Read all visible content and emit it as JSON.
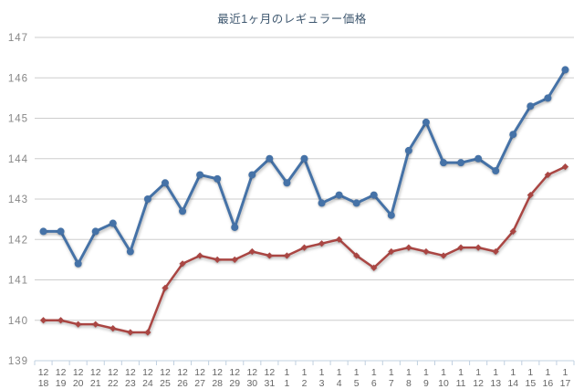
{
  "chart_data": {
    "type": "line",
    "title": "最近1ヶ月のレギュラー価格",
    "xlabel": "",
    "ylabel": "",
    "ylim": [
      139,
      147
    ],
    "y_ticks": [
      139,
      140,
      141,
      142,
      143,
      144,
      145,
      146,
      147
    ],
    "grid": true,
    "legend": "none",
    "categories": [
      "12/18",
      "12/19",
      "12/20",
      "12/21",
      "12/22",
      "12/23",
      "12/24",
      "12/25",
      "12/26",
      "12/27",
      "12/28",
      "12/29",
      "12/30",
      "12/31",
      "1/1",
      "1/2",
      "1/3",
      "1/4",
      "1/5",
      "1/6",
      "1/7",
      "1/8",
      "1/9",
      "1/10",
      "1/11",
      "1/12",
      "1/13",
      "1/14",
      "1/15",
      "1/16",
      "1/17"
    ],
    "series": [
      {
        "color": "#4572A7",
        "marker": "circle",
        "values": [
          142.2,
          142.2,
          141.4,
          142.2,
          142.4,
          141.7,
          143.0,
          143.4,
          142.7,
          143.6,
          143.5,
          142.3,
          143.6,
          144.0,
          143.4,
          144.0,
          142.9,
          143.1,
          142.9,
          143.1,
          142.6,
          144.2,
          144.9,
          143.9,
          143.9,
          144.0,
          143.7,
          144.6,
          145.3,
          145.5,
          146.2
        ]
      },
      {
        "color": "#AA4643",
        "marker": "diamond",
        "values": [
          140.0,
          140.0,
          139.9,
          139.9,
          139.8,
          139.7,
          139.7,
          140.8,
          141.4,
          141.6,
          141.5,
          141.5,
          141.7,
          141.6,
          141.6,
          141.8,
          141.9,
          142.0,
          141.6,
          141.3,
          141.7,
          141.8,
          141.7,
          141.6,
          141.8,
          141.8,
          141.7,
          142.2,
          143.1,
          143.6,
          143.8
        ]
      }
    ],
    "colors": {
      "grid": "#CDCDCD",
      "axis_line": "#C0D0E0",
      "x_label": "#666666",
      "y_label": "#878787",
      "title": "#3E576F",
      "background": "#FFFFFF"
    }
  }
}
